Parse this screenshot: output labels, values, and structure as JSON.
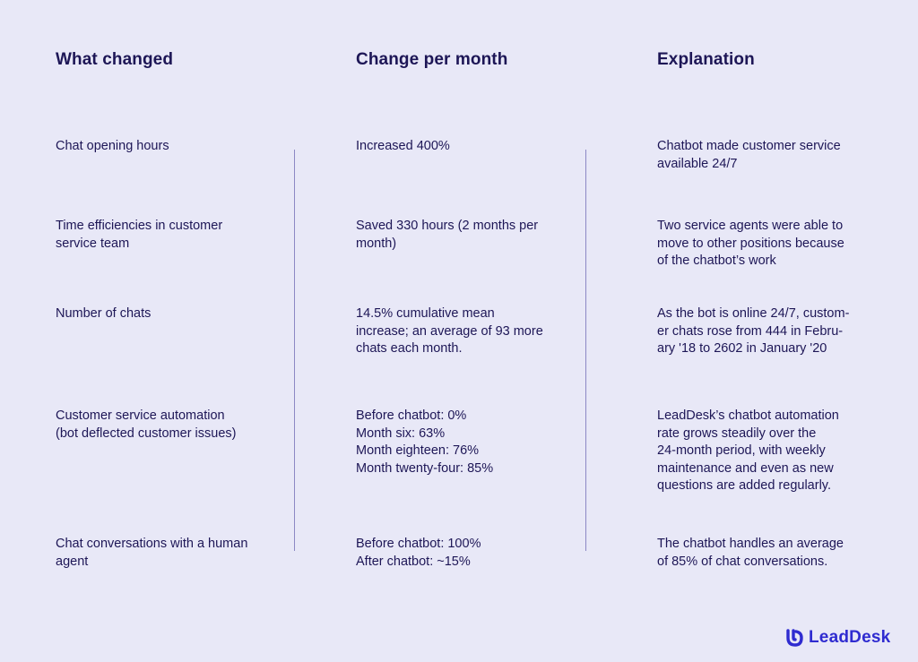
{
  "headers": {
    "col1": "What changed",
    "col2": "Change per month",
    "col3": "Explanation"
  },
  "rows": [
    {
      "what": "Chat opening hours",
      "change": "Increased 400%",
      "explanation": "Chatbot made customer service\navailable 24/7"
    },
    {
      "what": "Time efficiencies in customer\nservice team",
      "change": "Saved 330 hours (2 months per\nmonth)",
      "explanation": "Two service agents were able to\nmove to other positions because\nof the chatbot’s work"
    },
    {
      "what": "Number of chats",
      "change": "14.5% cumulative mean\nincrease; an average of 93 more\nchats each month.",
      "explanation": "As the bot is online 24/7, custom-\ner chats rose from 444 in Febru-\nary '18 to 2602 in January '20"
    },
    {
      "what": "Customer service automation\n(bot deflected customer issues)",
      "change": "Before chatbot: 0%\nMonth six: 63%\nMonth eighteen: 76%\nMonth twenty-four: 85%",
      "explanation": "LeadDesk’s chatbot automation\nrate grows steadily over the\n24-month period, with weekly\nmaintenance and even as new\nquestions are added regularly."
    },
    {
      "what": "Chat conversations with a human\nagent",
      "change": "Before chatbot: 100%\nAfter chatbot: ~15%",
      "explanation": "The chatbot handles an average\nof 85% of chat conversations."
    }
  ],
  "logo": {
    "text": "LeadDesk",
    "icon": "leaddesk-logo-icon",
    "color": "#2f2bd0"
  },
  "colors": {
    "background": "#e8e8f7",
    "text": "#1d1656",
    "divider": "#8c88c4"
  }
}
